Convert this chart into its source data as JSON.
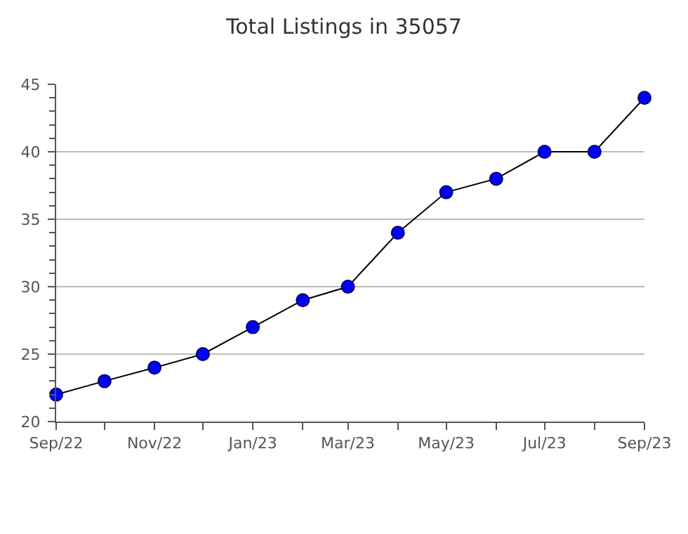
{
  "chart_data": {
    "type": "line",
    "title": "Total Listings in 35057",
    "x": [
      "2022-09",
      "2022-10",
      "2022-11",
      "2022-12",
      "2023-01",
      "2023-02",
      "2023-03",
      "2023-04",
      "2023-05",
      "2023-06",
      "2023-07",
      "2023-08",
      "2023-09"
    ],
    "series": [
      {
        "color": "#0000ff",
        "values": [
          22,
          23,
          24,
          25,
          27,
          29,
          30,
          34,
          37,
          38,
          40,
          40,
          44
        ]
      }
    ],
    "xlim": [
      "2022-09",
      "2023-09"
    ],
    "xticks": [
      {
        "value": "2022-09",
        "label": "Sep/22"
      },
      {
        "value": "2022-10",
        "label": null
      },
      {
        "value": "2022-11",
        "label": "Nov/22"
      },
      {
        "value": "2022-12",
        "label": null
      },
      {
        "value": "2023-01",
        "label": "Jan/23"
      },
      {
        "value": "2023-02",
        "label": null
      },
      {
        "value": "2023-03",
        "label": "Mar/23"
      },
      {
        "value": "2023-04",
        "label": null
      },
      {
        "value": "2023-05",
        "label": "May/23"
      },
      {
        "value": "2023-06",
        "label": null
      },
      {
        "value": "2023-07",
        "label": "Jul/23"
      },
      {
        "value": "2023-08",
        "label": null
      },
      {
        "value": "2023-09",
        "label": "Sep/23"
      }
    ],
    "ylim": [
      20,
      45
    ],
    "yticks": [
      20,
      25,
      30,
      35,
      40,
      45
    ],
    "grid": "y",
    "marker": "circle",
    "line_style": "solid"
  }
}
